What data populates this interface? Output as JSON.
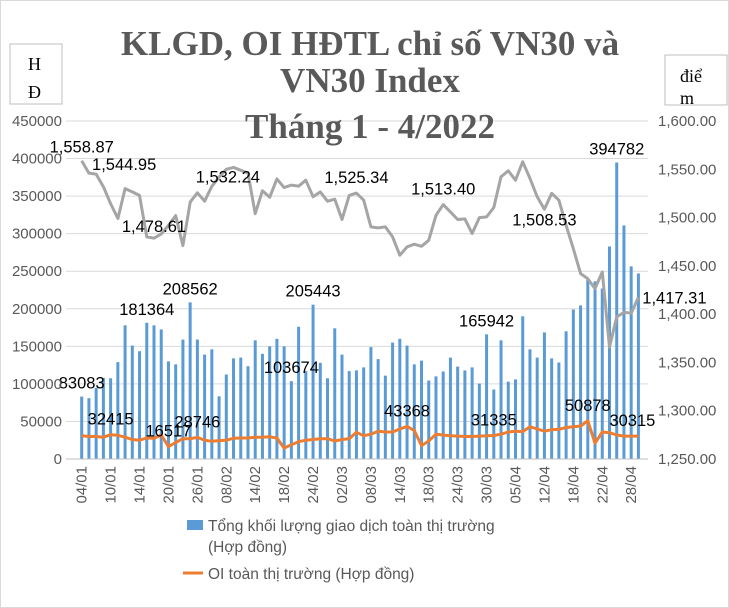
{
  "chart_data": {
    "type": "bar+line",
    "title": [
      "KLGD, OI HĐTL chỉ số VN30 và",
      "VN30 Index",
      "Tháng 1 - 4/2022"
    ],
    "ylabel_left": [
      "H",
      "Đ"
    ],
    "ylabel_right": [
      "điể",
      "m"
    ],
    "ylim_left": [
      0,
      450000
    ],
    "ylim_right": [
      1250,
      1600
    ],
    "yticks_left": [
      "0",
      "50000",
      "100000",
      "150000",
      "200000",
      "250000",
      "300000",
      "350000",
      "400000",
      "450000"
    ],
    "yticks_right": [
      "1,250.00",
      "1,300.00",
      "1,350.00",
      "1,400.00",
      "1,450.00",
      "1,500.00",
      "1,550.00",
      "1,600.00"
    ],
    "grid": true,
    "legend_position": "bottom",
    "x_tick_labels": [
      "04/01",
      "10/01",
      "14/01",
      "20/01",
      "26/01",
      "08/02",
      "14/02",
      "18/02",
      "24/02",
      "02/03",
      "08/03",
      "14/03",
      "18/03",
      "24/03",
      "30/03",
      "05/04",
      "12/04",
      "18/04",
      "22/04",
      "28/04"
    ],
    "series": [
      {
        "name": "Tổng khối lượng giao dịch toàn thị trường (Hợp đồng)",
        "type": "bar",
        "axis": "left",
        "color": "#5B9BD5",
        "values": [
          83083,
          81000,
          94700,
          108000,
          107500,
          129000,
          178000,
          151000,
          143500,
          181364,
          178000,
          172500,
          130000,
          126000,
          159000,
          208562,
          159000,
          139000,
          146000,
          83500,
          112500,
          134000,
          135000,
          123500,
          158000,
          140000,
          150000,
          160000,
          150000,
          103674,
          176000,
          117000,
          205443,
          128000,
          107500,
          174000,
          139000,
          117000,
          118000,
          122000,
          149000,
          133000,
          111000,
          155000,
          160000,
          151000,
          126000,
          131000,
          104500,
          110000,
          116500,
          135000,
          123000,
          118000,
          122000,
          100500,
          165942,
          92500,
          158000,
          103000,
          106000,
          190000,
          146000,
          135000,
          168500,
          134000,
          128500,
          170000,
          199000,
          204500,
          240000,
          236500,
          227000,
          283000,
          394782,
          311000,
          256500,
          247000
        ]
      },
      {
        "name": "OI toàn thị trường (Hợp đồng)",
        "type": "line",
        "axis": "left",
        "color": "#ED7D31",
        "values": [
          31000,
          30000,
          30000,
          29000,
          32415,
          31500,
          29000,
          26000,
          25000,
          28000,
          27500,
          32000,
          16517,
          22000,
          27000,
          27000,
          28746,
          25000,
          23500,
          24500,
          25000,
          27500,
          28000,
          28000,
          29000,
          29000,
          29500,
          28000,
          14500,
          19000,
          23000,
          25000,
          26000,
          27000,
          27000,
          24000,
          26000,
          27000,
          35500,
          31000,
          33000,
          37000,
          36000,
          36000,
          40000,
          43368,
          38000,
          17800,
          24000,
          33000,
          32000,
          31000,
          30500,
          30000,
          30000,
          30500,
          31000,
          31335,
          33000,
          36000,
          37000,
          36500,
          43000,
          40000,
          37000,
          39000,
          39500,
          42000,
          43000,
          44000,
          50878,
          21000,
          36000,
          35000,
          32000,
          30500,
          30500,
          30315
        ]
      },
      {
        "type": "line",
        "axis": "right",
        "color": "#A5A5A5",
        "values": [
          1558.87,
          1546,
          1544.95,
          1532,
          1514.5,
          1499,
          1530,
          1526.6,
          1523,
          1480,
          1478.61,
          1483,
          1492,
          1502,
          1471,
          1516,
          1525.6,
          1517,
          1532.24,
          1542,
          1550,
          1552,
          1549,
          1546,
          1504,
          1527.7,
          1521,
          1540,
          1531,
          1533.6,
          1532.5,
          1538.7,
          1521.5,
          1526.6,
          1517,
          1519,
          1498,
          1523,
          1525.34,
          1518,
          1490.3,
          1489.3,
          1490.3,
          1480,
          1461,
          1469.6,
          1472.4,
          1470.3,
          1476.5,
          1502.4,
          1513.4,
          1505.9,
          1498,
          1498.6,
          1483.5,
          1500,
          1500.7,
          1510.4,
          1542.2,
          1548.4,
          1538.7,
          1557.8,
          1540.5,
          1521.5,
          1508.53,
          1525,
          1518,
          1492,
          1467.9,
          1442,
          1436.7,
          1426.4,
          1443.6,
          1365.8,
          1397,
          1402,
          1401,
          1417.31
        ]
      }
    ],
    "data_labels": {
      "bars": [
        {
          "i": 0,
          "text": "83083"
        },
        {
          "i": 9,
          "text": "181364"
        },
        {
          "i": 15,
          "text": "208562"
        },
        {
          "i": 29,
          "text": "103674"
        },
        {
          "i": 32,
          "text": "205443"
        },
        {
          "i": 56,
          "text": "165942"
        },
        {
          "i": 74,
          "text": "394782"
        }
      ],
      "oi": [
        {
          "i": 4,
          "text": "32415"
        },
        {
          "i": 12,
          "text": "16517"
        },
        {
          "i": 16,
          "text": "28746"
        },
        {
          "i": 45,
          "text": "43368"
        },
        {
          "i": 57,
          "text": "31335"
        },
        {
          "i": 70,
          "text": "50878"
        },
        {
          "i": 77,
          "text": "30315"
        }
      ],
      "vn30": [
        {
          "i": 0,
          "text": "1,558.87"
        },
        {
          "i": 2,
          "text": "1,544.95"
        },
        {
          "i": 10,
          "text": "1,478.61"
        },
        {
          "i": 18,
          "text": "1,532.24"
        },
        {
          "i": 38,
          "text": "1,525.34"
        },
        {
          "i": 50,
          "text": "1,513.40"
        },
        {
          "i": 64,
          "text": "1,508.53"
        },
        {
          "i": 77,
          "text": "1,417.31"
        }
      ]
    },
    "legend": [
      "Tổng khối lượng giao dịch toàn thị trường",
      "(Hợp đồng)",
      "OI toàn thị trường (Hợp đồng)"
    ]
  }
}
